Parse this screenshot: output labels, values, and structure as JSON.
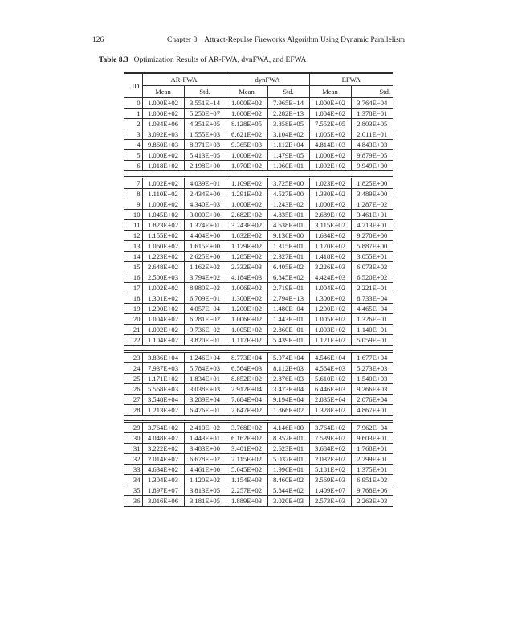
{
  "page": {
    "page_number": "126",
    "chapter_label": "Chapter 8",
    "chapter_title": "Attract-Repulse Fireworks Algorithm Using Dynamic Parallelism",
    "caption_label": "Table 8.3",
    "caption_text": "Optimization Results of AR-FWA, dynFWA, and EFWA"
  },
  "table": {
    "id_header": "ID",
    "groups": [
      "AR-FWA",
      "dynFWA",
      "EFWA"
    ],
    "sub_headers": [
      "Mean",
      "Std.",
      "Mean",
      "Std.",
      "Mean",
      "Std."
    ],
    "blocks": [
      {
        "rows": [
          {
            "id": "0",
            "values": [
              "1.000E+02",
              "3.551E−14",
              "1.000E+02",
              "7.965E−14",
              "1.000E+02",
              "3.764E−04"
            ]
          },
          {
            "id": "1",
            "values": [
              "1.000E+02",
              "5.250E−07",
              "1.000E+02",
              "2.282E−13",
              "1.004E+02",
              "1.378E−01"
            ]
          },
          {
            "id": "2",
            "values": [
              "1.034E+06",
              "4.351E+05",
              "8.128E+05",
              "3.858E+05",
              "7.552E+05",
              "2.803E+05"
            ]
          },
          {
            "id": "3",
            "values": [
              "3.092E+03",
              "1.555E+03",
              "6.621E+02",
              "3.104E+02",
              "1.005E+02",
              "2.011E−01"
            ]
          },
          {
            "id": "4",
            "values": [
              "9.860E+03",
              "8.371E+03",
              "9.365E+03",
              "1.112E+04",
              "4.814E+03",
              "4.843E+03"
            ]
          },
          {
            "id": "5",
            "values": [
              "1.000E+02",
              "5.413E−05",
              "1.000E+02",
              "1.479E−05",
              "1.000E+02",
              "9.879E−05"
            ]
          },
          {
            "id": "6",
            "values": [
              "1.018E+02",
              "2.198E+00",
              "1.070E+02",
              "1.060E+01",
              "1.092E+02",
              "9.949E+00"
            ]
          }
        ]
      },
      {
        "rows": [
          {
            "id": "7",
            "values": [
              "1.002E+02",
              "4.039E−01",
              "1.109E+02",
              "3.725E+00",
              "1.023E+02",
              "1.825E+00"
            ]
          },
          {
            "id": "8",
            "values": [
              "1.110E+02",
              "2.434E+00",
              "1.291E+02",
              "4.527E+00",
              "1.330E+02",
              "3.489E+00"
            ]
          },
          {
            "id": "9",
            "values": [
              "1.000E+02",
              "4.340E−03",
              "1.000E+02",
              "1.243E−02",
              "1.000E+02",
              "1.287E−02"
            ]
          },
          {
            "id": "10",
            "values": [
              "1.045E+02",
              "3.000E+00",
              "2.682E+02",
              "4.835E+01",
              "2.689E+02",
              "3.461E+01"
            ]
          },
          {
            "id": "11",
            "values": [
              "1.823E+02",
              "1.374E+01",
              "3.243E+02",
              "4.638E+01",
              "3.115E+02",
              "4.713E+01"
            ]
          },
          {
            "id": "12",
            "values": [
              "1.155E+02",
              "4.404E+00",
              "1.632E+02",
              "9.136E+00",
              "1.634E+02",
              "9.270E+00"
            ]
          },
          {
            "id": "13",
            "values": [
              "1.060E+02",
              "1.615E+00",
              "1.179E+02",
              "1.315E+01",
              "1.170E+02",
              "5.887E+00"
            ]
          },
          {
            "id": "14",
            "values": [
              "1.223E+02",
              "2.625E+00",
              "1.285E+02",
              "2.327E+01",
              "1.418E+02",
              "3.055E+01"
            ]
          },
          {
            "id": "15",
            "values": [
              "2.648E+02",
              "1.162E+02",
              "2.332E+03",
              "6.405E+02",
              "3.226E+03",
              "6.073E+02"
            ]
          },
          {
            "id": "16",
            "values": [
              "2.500E+03",
              "3.794E+02",
              "4.184E+03",
              "6.845E+02",
              "4.424E+03",
              "6.520E+02"
            ]
          },
          {
            "id": "17",
            "values": [
              "1.002E+02",
              "8.980E−02",
              "1.006E+02",
              "2.719E−01",
              "1.004E+02",
              "2.221E−01"
            ]
          },
          {
            "id": "18",
            "values": [
              "1.301E+02",
              "6.709E−01",
              "1.300E+02",
              "2.794E−13",
              "1.300E+02",
              "8.733E−04"
            ]
          },
          {
            "id": "19",
            "values": [
              "1.200E+02",
              "4.057E−04",
              "1.200E+02",
              "1.480E−04",
              "1.200E+02",
              "4.465E−04"
            ]
          },
          {
            "id": "20",
            "values": [
              "1.004E+02",
              "6.281E−02",
              "1.006E+02",
              "1.443E−01",
              "1.005E+02",
              "1.326E−01"
            ]
          },
          {
            "id": "21",
            "values": [
              "1.002E+02",
              "9.736E−02",
              "1.005E+02",
              "2.860E−01",
              "1.003E+02",
              "1.140E−01"
            ]
          },
          {
            "id": "22",
            "values": [
              "1.104E+02",
              "3.820E−01",
              "1.117E+02",
              "5.439E−01",
              "1.121E+02",
              "5.059E−01"
            ]
          }
        ]
      },
      {
        "rows": [
          {
            "id": "23",
            "values": [
              "3.836E+04",
              "1.246E+04",
              "8.773E+04",
              "5.074E+04",
              "4.546E+04",
              "1.677E+04"
            ]
          },
          {
            "id": "24",
            "values": [
              "7.937E+03",
              "5.784E+03",
              "6.564E+03",
              "8.112E+03",
              "4.564E+03",
              "5.273E+03"
            ]
          },
          {
            "id": "25",
            "values": [
              "1.171E+02",
              "1.834E+01",
              "8.852E+02",
              "2.876E+03",
              "5.610E+02",
              "1.540E+03"
            ]
          },
          {
            "id": "26",
            "values": [
              "5.568E+03",
              "3.038E+03",
              "2.912E+04",
              "3.473E+04",
              "6.446E+03",
              "9.266E+03"
            ]
          },
          {
            "id": "27",
            "values": [
              "3.548E+04",
              "3.289E+04",
              "7.684E+04",
              "9.194E+04",
              "2.835E+04",
              "2.076E+04"
            ]
          },
          {
            "id": "28",
            "values": [
              "1.213E+02",
              "6.476E−01",
              "2.647E+02",
              "1.866E+02",
              "1.328E+02",
              "4.867E+01"
            ]
          }
        ]
      },
      {
        "rows": [
          {
            "id": "29",
            "values": [
              "3.764E+02",
              "2.410E−02",
              "3.768E+02",
              "4.146E+00",
              "3.764E+02",
              "7.962E−04"
            ]
          },
          {
            "id": "30",
            "values": [
              "4.048E+02",
              "1.443E+01",
              "6.162E+02",
              "8.352E+01",
              "7.539E+02",
              "9.603E+01"
            ]
          },
          {
            "id": "31",
            "values": [
              "3.222E+02",
              "3.483E+00",
              "3.401E+02",
              "2.623E+01",
              "3.684E+02",
              "1.768E+01"
            ]
          },
          {
            "id": "32",
            "values": [
              "2.014E+02",
              "6.678E−02",
              "2.115E+02",
              "5.037E+01",
              "2.032E+02",
              "2.299E+01"
            ]
          },
          {
            "id": "33",
            "values": [
              "4.634E+02",
              "4.461E+00",
              "5.045E+02",
              "1.996E+01",
              "5.181E+02",
              "1.375E+01"
            ]
          },
          {
            "id": "34",
            "values": [
              "1.304E+03",
              "1.120E+02",
              "1.154E+03",
              "8.460E+02",
              "3.569E+03",
              "6.951E+02"
            ]
          },
          {
            "id": "35",
            "values": [
              "1.897E+07",
              "3.813E+05",
              "2.257E+02",
              "5.844E+02",
              "1.409E+07",
              "9.768E+06"
            ]
          },
          {
            "id": "36",
            "values": [
              "3.016E+06",
              "3.181E+05",
              "1.889E+03",
              "3.020E+03",
              "2.573E+03",
              "2.263E+03"
            ]
          }
        ]
      }
    ]
  }
}
